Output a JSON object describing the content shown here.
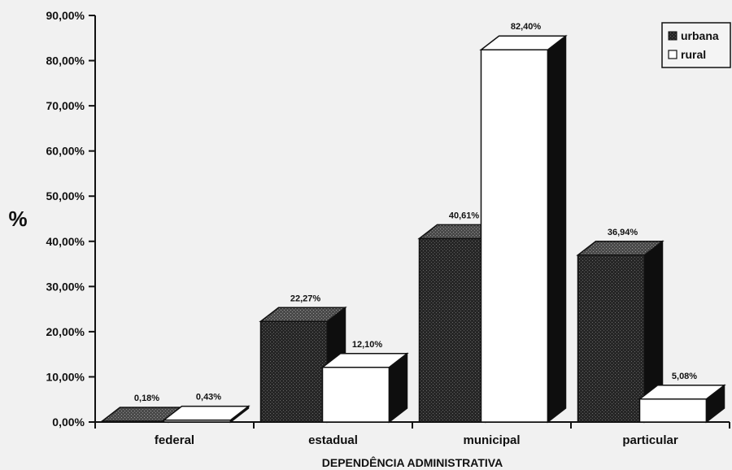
{
  "chart_data": {
    "type": "bar",
    "title": "",
    "xlabel": "DEPENDÊNCIA ADMINISTRATIVA",
    "ylabel": "%",
    "ylim": [
      0,
      90
    ],
    "yticks": [
      "0,00%",
      "10,00%",
      "20,00%",
      "30,00%",
      "40,00%",
      "50,00%",
      "60,00%",
      "70,00%",
      "80,00%",
      "90,00%"
    ],
    "categories": [
      "federal",
      "estadual",
      "municipal",
      "particular"
    ],
    "series": [
      {
        "name": "urbana",
        "values": [
          0.18,
          22.27,
          40.61,
          36.94
        ],
        "labels": [
          "0,18%",
          "22,27%",
          "40,61%",
          "36,94%"
        ],
        "color": "#2a2a2a"
      },
      {
        "name": "rural",
        "values": [
          0.43,
          12.1,
          82.4,
          5.08
        ],
        "labels": [
          "0,43%",
          "12,10%",
          "82,40%",
          "5,08%"
        ],
        "color": "#ffffff"
      }
    ],
    "legend": "top-right",
    "grid": false,
    "style": "3d"
  }
}
